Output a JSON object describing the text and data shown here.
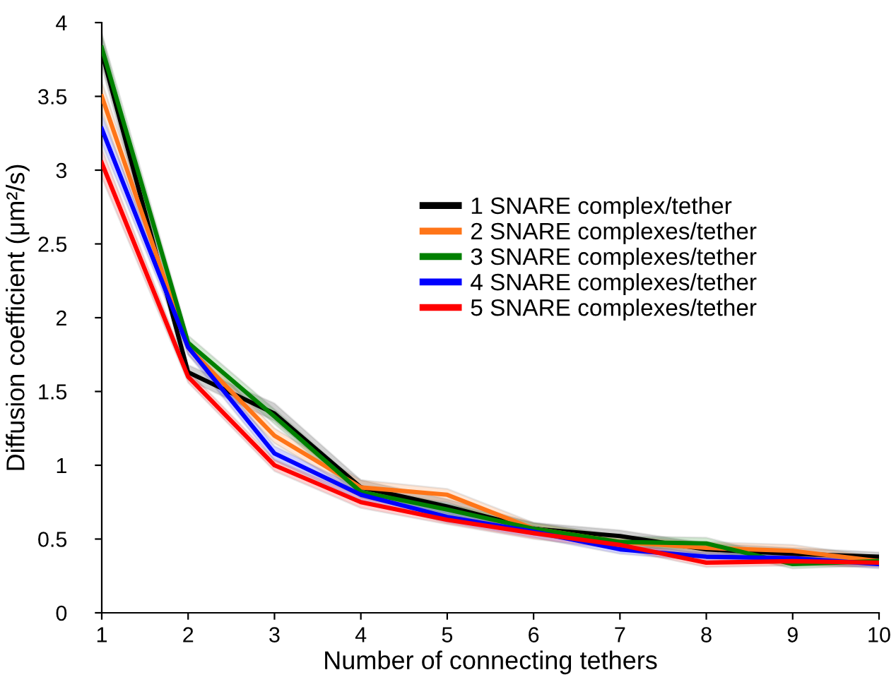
{
  "chart_data": {
    "type": "line",
    "xlabel": "Number of connecting tethers",
    "ylabel": "Diffusion coefficient (μm²/s)",
    "x": [
      1,
      2,
      3,
      4,
      5,
      6,
      7,
      8,
      9,
      10
    ],
    "series": [
      {
        "name": "1 SNARE complex/tether",
        "color": "#000000",
        "values": [
          3.8,
          1.63,
          1.35,
          0.85,
          0.72,
          0.57,
          0.52,
          0.43,
          0.4,
          0.38
        ],
        "lower": [
          3.7,
          1.58,
          1.3,
          0.8,
          0.67,
          0.53,
          0.48,
          0.39,
          0.36,
          0.35
        ],
        "upper": [
          3.92,
          1.68,
          1.42,
          0.9,
          0.77,
          0.61,
          0.56,
          0.47,
          0.44,
          0.41
        ]
      },
      {
        "name": "2 SNARE complexes/tether",
        "color": "#ff7518",
        "values": [
          3.5,
          1.8,
          1.2,
          0.85,
          0.8,
          0.57,
          0.48,
          0.44,
          0.42,
          0.35
        ],
        "lower": [
          3.4,
          1.75,
          1.15,
          0.8,
          0.75,
          0.53,
          0.44,
          0.4,
          0.38,
          0.32
        ],
        "upper": [
          3.6,
          1.85,
          1.25,
          0.9,
          0.84,
          0.61,
          0.52,
          0.48,
          0.46,
          0.38
        ]
      },
      {
        "name": "3 SNARE complexes/tether",
        "color": "#008000",
        "values": [
          3.83,
          1.83,
          1.33,
          0.82,
          0.7,
          0.57,
          0.48,
          0.47,
          0.33,
          0.35
        ],
        "lower": [
          3.73,
          1.78,
          1.28,
          0.78,
          0.66,
          0.53,
          0.44,
          0.43,
          0.3,
          0.32
        ],
        "upper": [
          3.93,
          1.88,
          1.38,
          0.86,
          0.74,
          0.61,
          0.52,
          0.51,
          0.36,
          0.38
        ]
      },
      {
        "name": "4 SNARE complexes/tether",
        "color": "#0000ff",
        "values": [
          3.28,
          1.8,
          1.08,
          0.8,
          0.65,
          0.55,
          0.43,
          0.38,
          0.37,
          0.33
        ],
        "lower": [
          3.18,
          1.75,
          1.03,
          0.76,
          0.61,
          0.51,
          0.4,
          0.35,
          0.34,
          0.3
        ],
        "upper": [
          3.38,
          1.85,
          1.13,
          0.84,
          0.69,
          0.59,
          0.46,
          0.41,
          0.4,
          0.36
        ]
      },
      {
        "name": "5 SNARE complexes/tether",
        "color": "#ff0000",
        "values": [
          3.05,
          1.6,
          1.0,
          0.75,
          0.63,
          0.54,
          0.46,
          0.34,
          0.35,
          0.34
        ],
        "lower": [
          2.95,
          1.56,
          0.96,
          0.71,
          0.6,
          0.5,
          0.43,
          0.31,
          0.32,
          0.31
        ],
        "upper": [
          3.15,
          1.64,
          1.04,
          0.79,
          0.66,
          0.58,
          0.49,
          0.37,
          0.38,
          0.37
        ]
      }
    ],
    "xlim": [
      1,
      10
    ],
    "xticks": [
      1,
      2,
      3,
      4,
      5,
      6,
      7,
      8,
      9,
      10
    ],
    "ylim": [
      0,
      4
    ],
    "yticks": [
      0,
      0.5,
      1,
      1.5,
      2,
      2.5,
      3,
      3.5,
      4
    ],
    "legend": "right",
    "grid": false,
    "marker": "none",
    "line_style": "solid"
  }
}
